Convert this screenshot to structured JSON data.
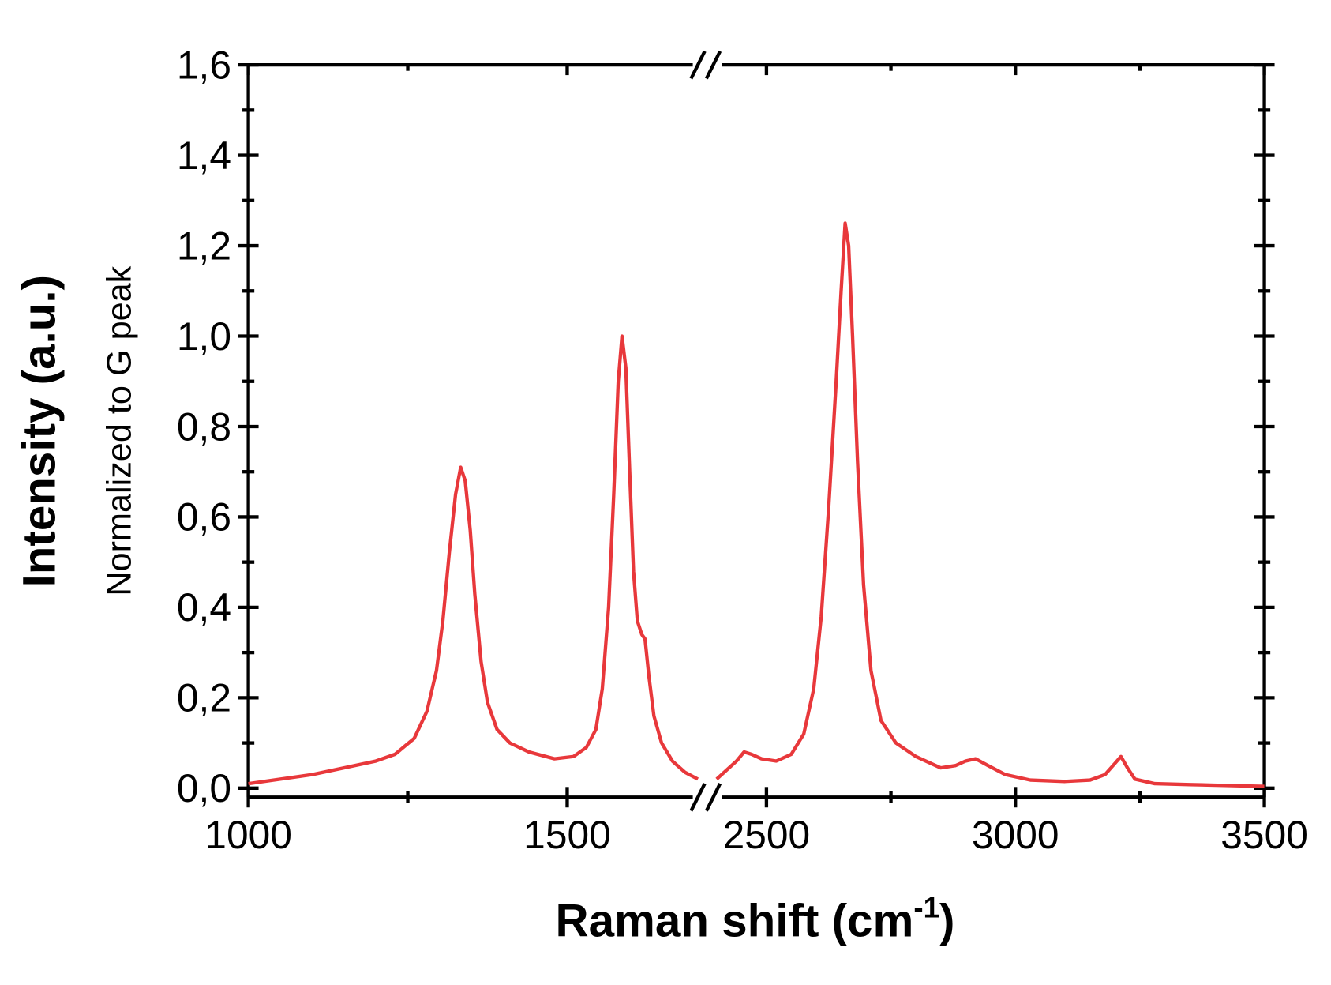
{
  "chart_data": {
    "type": "line",
    "ylabel": "Intensity (a.u.)",
    "ylabel2": "Normalized to G peak",
    "xlabel": {
      "text": "Raman shift (cm",
      "sup": "-1",
      "tail": ")"
    },
    "xlim": [
      1000,
      3500
    ],
    "xbreak": [
      1705,
      2400
    ],
    "xticks": [
      1000,
      1500,
      2500,
      3000,
      3500
    ],
    "xminor": [
      1250,
      2750,
      3250
    ],
    "ylim": [
      -0.02,
      1.6
    ],
    "yticks": [
      {
        "value": 0,
        "label": "0,0"
      },
      {
        "value": 0.2,
        "label": "0,2"
      },
      {
        "value": 0.4,
        "label": "0,4"
      },
      {
        "value": 0.6,
        "label": "0,6"
      },
      {
        "value": 0.8,
        "label": "0,8"
      },
      {
        "value": 1.0,
        "label": "1,0"
      },
      {
        "value": 1.2,
        "label": "1,2"
      },
      {
        "value": 1.4,
        "label": "1,4"
      },
      {
        "value": 1.6,
        "label": "1,6"
      }
    ],
    "yminor": [
      0.1,
      0.3,
      0.5,
      0.7,
      0.9,
      1.1,
      1.3,
      1.5
    ],
    "series": [
      {
        "color": "#e8383b",
        "x": [
          1000,
          1050,
          1100,
          1150,
          1200,
          1230,
          1260,
          1280,
          1295,
          1305,
          1315,
          1325,
          1333,
          1340,
          1348,
          1355,
          1365,
          1375,
          1390,
          1410,
          1440,
          1480,
          1510,
          1530,
          1545,
          1555,
          1565,
          1573,
          1580,
          1586,
          1592,
          1598,
          1604,
          1610,
          1617,
          1622,
          1628,
          1636,
          1648,
          1665,
          1685,
          1705,
          2400,
          2420,
          2440,
          2455,
          2470,
          2490,
          2520,
          2550,
          2575,
          2595,
          2610,
          2625,
          2640,
          2650,
          2658,
          2665,
          2673,
          2683,
          2695,
          2710,
          2730,
          2760,
          2800,
          2850,
          2880,
          2900,
          2920,
          2945,
          2980,
          3030,
          3100,
          3150,
          3180,
          3200,
          3212,
          3225,
          3240,
          3280,
          3350,
          3420,
          3500
        ],
        "values": [
          0.01,
          0.02,
          0.03,
          0.045,
          0.06,
          0.075,
          0.11,
          0.17,
          0.26,
          0.37,
          0.52,
          0.65,
          0.71,
          0.68,
          0.57,
          0.43,
          0.28,
          0.19,
          0.13,
          0.1,
          0.08,
          0.065,
          0.07,
          0.09,
          0.13,
          0.22,
          0.4,
          0.65,
          0.9,
          1.0,
          0.93,
          0.7,
          0.48,
          0.37,
          0.34,
          0.33,
          0.25,
          0.16,
          0.1,
          0.06,
          0.035,
          0.02,
          0.02,
          0.04,
          0.06,
          0.08,
          0.075,
          0.065,
          0.06,
          0.075,
          0.12,
          0.22,
          0.38,
          0.62,
          0.9,
          1.1,
          1.25,
          1.2,
          1.0,
          0.72,
          0.45,
          0.26,
          0.15,
          0.1,
          0.07,
          0.045,
          0.05,
          0.06,
          0.065,
          0.05,
          0.03,
          0.018,
          0.015,
          0.018,
          0.03,
          0.055,
          0.07,
          0.045,
          0.02,
          0.01,
          0.008,
          0.006,
          0.004
        ]
      }
    ]
  }
}
